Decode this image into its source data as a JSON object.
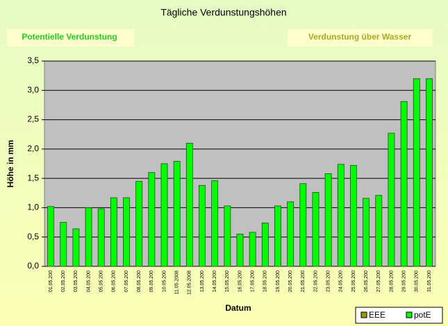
{
  "chart_data": {
    "type": "bar",
    "title": "Tägliche Verdunstungshöhen",
    "annotations": [
      "Potentielle Verdunstung",
      "Verdunstung über Wasser"
    ],
    "x_label": "Datum",
    "y_label": "Höhe in mm",
    "categories": [
      "01.05.200",
      "02.05.200",
      "03.05.200",
      "04.05.200",
      "05.05.200",
      "06.05.200",
      "07.05.200",
      "08.05.200",
      "09.05.200",
      "10.05.200",
      "11.05.2008",
      "12.05.2008",
      "13.05.200",
      "14.05.200",
      "15.05.200",
      "16.05.200",
      "17.05.200",
      "18.05.200",
      "19.05.200",
      "20.05.200",
      "21.05.200",
      "22.05.200",
      "23.05.200",
      "24.05.200",
      "25.05.200",
      "26.05.200",
      "27.05.200",
      "28.05.200",
      "29.05.200",
      "30.05.200",
      "31.05.200"
    ],
    "series": [
      {
        "name": "EEE",
        "color": "#999900",
        "values": [
          null,
          null,
          null,
          null,
          null,
          null,
          null,
          null,
          null,
          null,
          null,
          null,
          null,
          null,
          null,
          null,
          null,
          null,
          null,
          null,
          null,
          null,
          null,
          null,
          null,
          null,
          null,
          null,
          null,
          null,
          null
        ]
      },
      {
        "name": "potE",
        "color": "#00ff00",
        "values": [
          1.02,
          0.75,
          0.64,
          1.0,
          0.98,
          1.17,
          1.17,
          1.45,
          1.6,
          1.75,
          1.79,
          2.1,
          1.38,
          1.46,
          1.03,
          0.55,
          0.58,
          0.74,
          1.03,
          1.1,
          1.41,
          1.26,
          1.58,
          1.74,
          1.72,
          1.16,
          1.21,
          2.27,
          2.81,
          3.2,
          3.2
        ]
      }
    ],
    "ylim": [
      0,
      3.5
    ],
    "yticks": [
      {
        "value": 0,
        "label": "0,0"
      },
      {
        "value": 0.5,
        "label": "0,5"
      },
      {
        "value": 1,
        "label": "1,0"
      },
      {
        "value": 1.5,
        "label": "1,5"
      },
      {
        "value": 2,
        "label": "2,0"
      },
      {
        "value": 2.5,
        "label": "2,5"
      },
      {
        "value": 3,
        "label": "3,0"
      },
      {
        "value": 3.5,
        "label": "3,5"
      }
    ],
    "grid": true,
    "legend": "bottom-right"
  }
}
